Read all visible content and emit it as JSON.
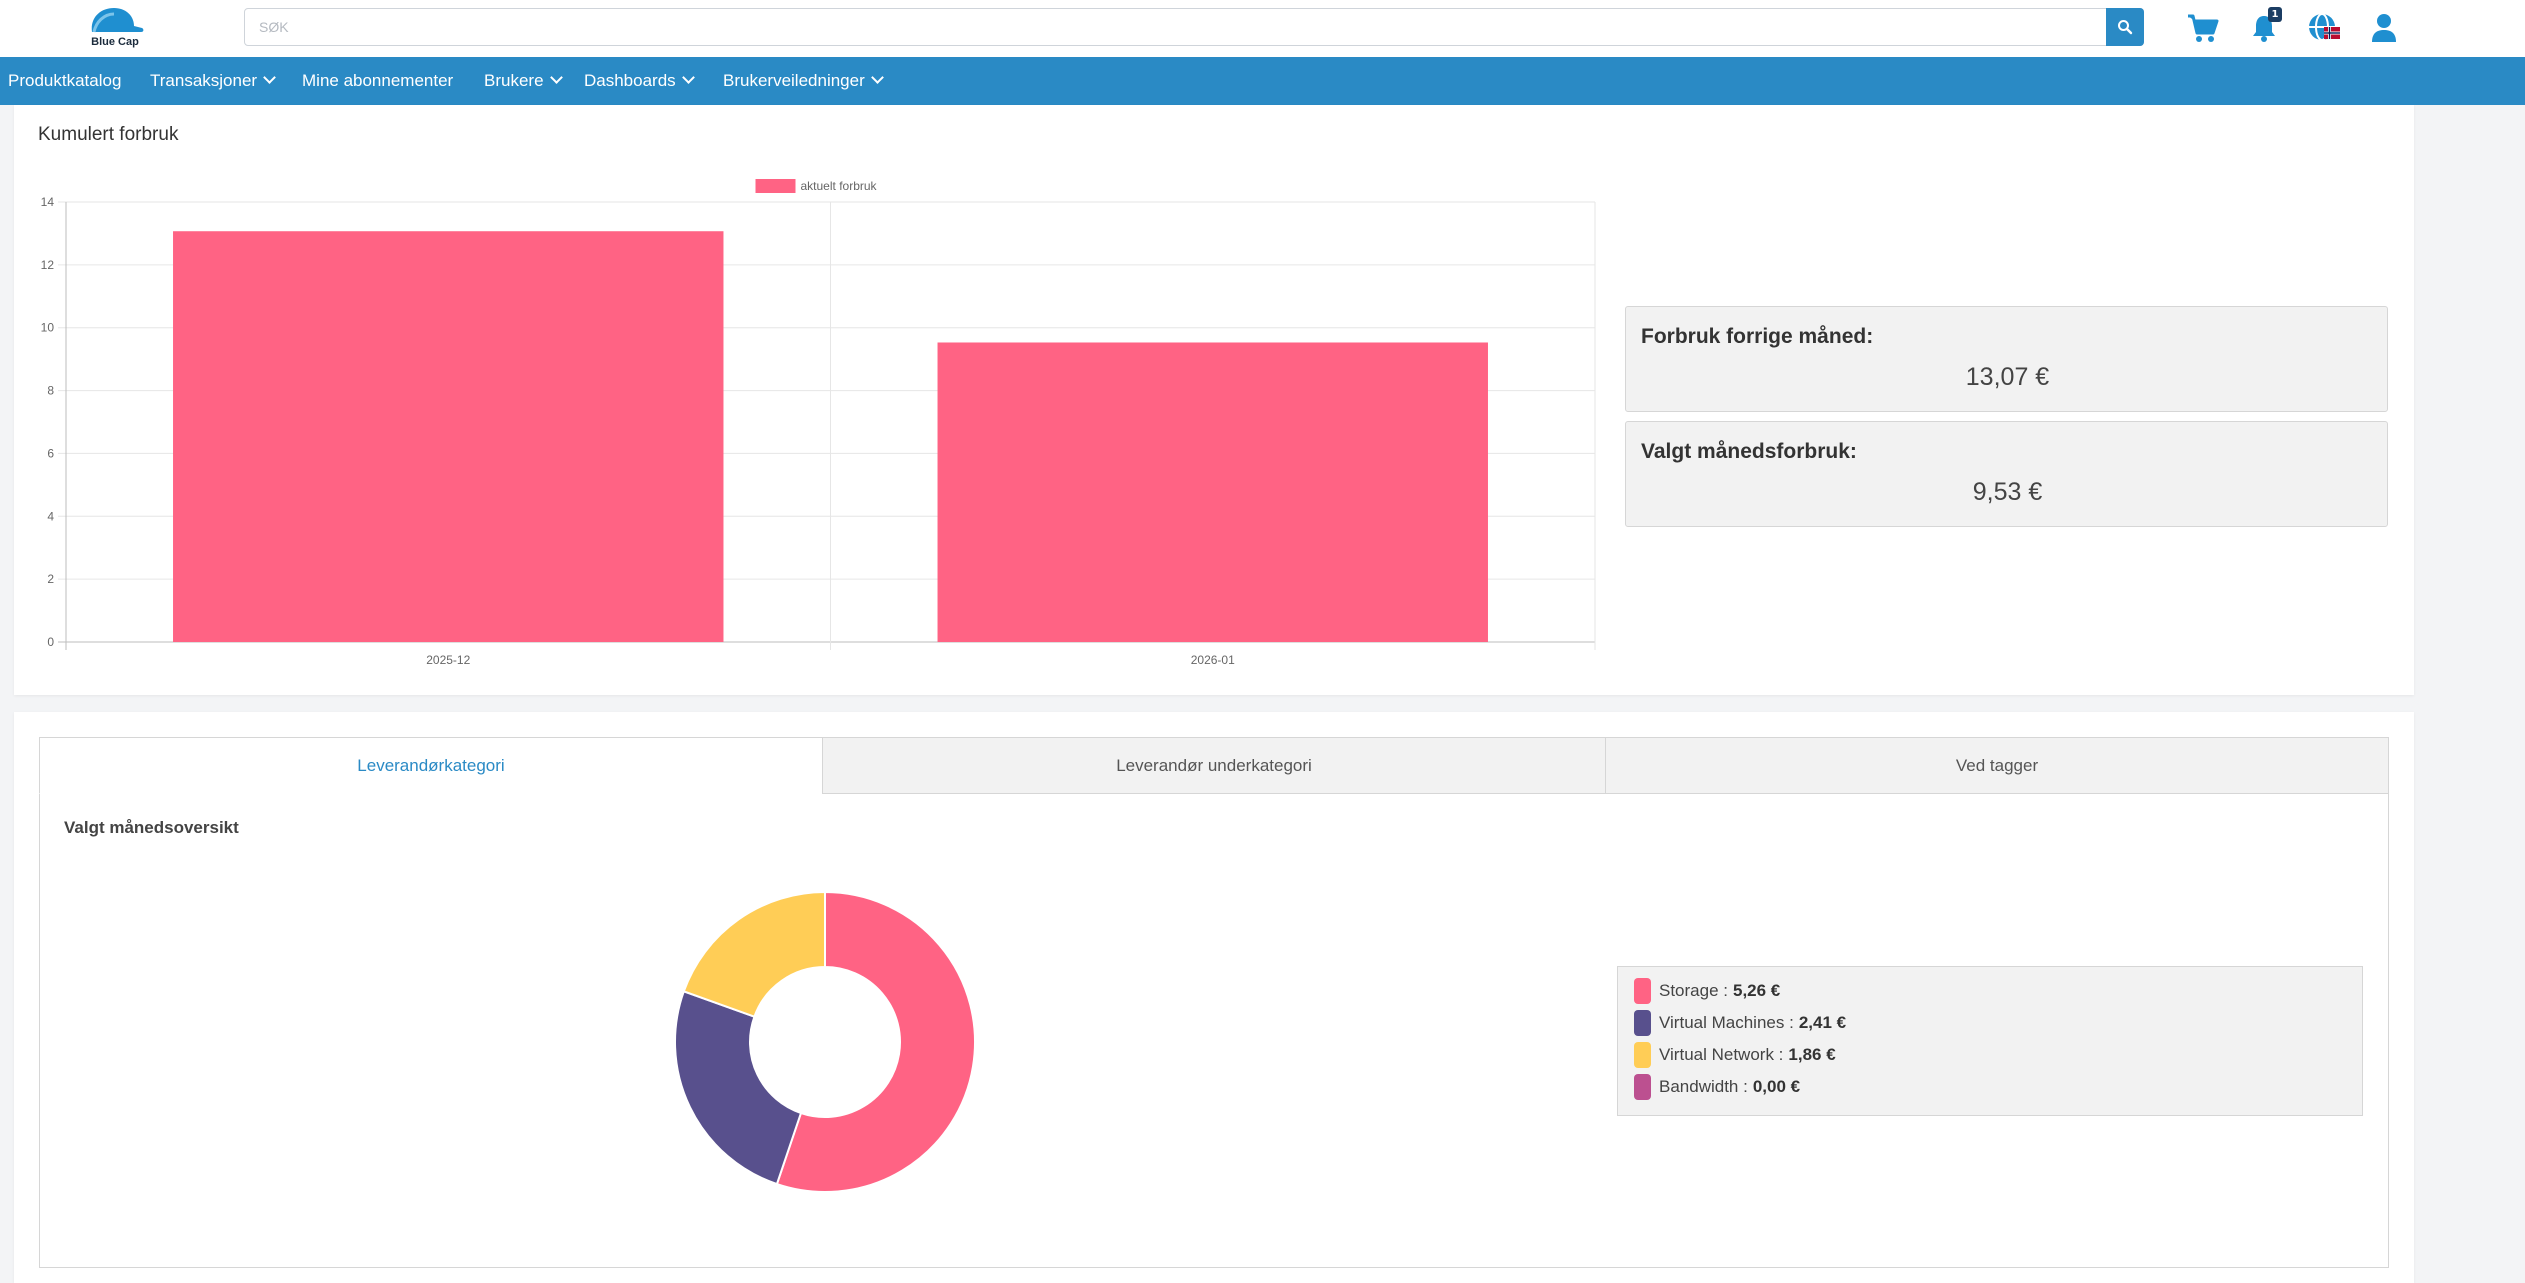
{
  "brand": {
    "name": "Blue Cap"
  },
  "search": {
    "placeholder": "SØK"
  },
  "header": {
    "notification_count": "1"
  },
  "nav": {
    "items": [
      {
        "label": "Produktkatalog",
        "has_dropdown": false
      },
      {
        "label": "Transaksjoner",
        "has_dropdown": true
      },
      {
        "label": "Mine abonnementer",
        "has_dropdown": false
      },
      {
        "label": "Brukere",
        "has_dropdown": true
      },
      {
        "label": "Dashboards",
        "has_dropdown": true
      },
      {
        "label": "Brukerveiledninger",
        "has_dropdown": true
      }
    ]
  },
  "cumulative": {
    "title": "Kumulert forbruk",
    "previous_month_label": "Forbruk forrige måned:",
    "previous_month_value": "13,07 €",
    "selected_month_label": "Valgt månedsforbruk:",
    "selected_month_value": "9,53 €"
  },
  "tabs": [
    {
      "label": "Leverandørkategori",
      "active": true
    },
    {
      "label": "Leverandør underkategori",
      "active": false
    },
    {
      "label": "Ved tagger",
      "active": false
    }
  ],
  "overview": {
    "title": "Valgt månedsoversikt",
    "legend": [
      {
        "name": "Storage",
        "value": "5,26 €",
        "color": "#ff6384"
      },
      {
        "name": "Virtual Machines",
        "value": "2,41 €",
        "color": "#58508d"
      },
      {
        "name": "Virtual Network",
        "value": "1,86 €",
        "color": "#ffcd56"
      },
      {
        "name": "Bandwidth",
        "value": "0,00 €",
        "color": "#bc5090"
      }
    ]
  },
  "colors": {
    "primary": "#2a8ac5",
    "bar": "#ff6384",
    "badge": "#1b3d63"
  },
  "chart_data": [
    {
      "type": "bar",
      "categories": [
        "2025-12",
        "2026-01"
      ],
      "series": [
        {
          "name": "aktuelt forbruk",
          "values": [
            13.07,
            9.53
          ],
          "color": "#ff6384"
        }
      ],
      "ylim": [
        0,
        14
      ],
      "yticks": [
        0,
        2,
        4,
        6,
        8,
        10,
        12,
        14
      ],
      "legend_position": "top-center",
      "grid": true
    },
    {
      "type": "pie",
      "variant": "doughnut",
      "categories": [
        "Storage",
        "Virtual Machines",
        "Virtual Network",
        "Bandwidth"
      ],
      "values": [
        5.26,
        2.41,
        1.86,
        0.0
      ],
      "colors": [
        "#ff6384",
        "#58508d",
        "#ffcd56",
        "#bc5090"
      ]
    }
  ]
}
